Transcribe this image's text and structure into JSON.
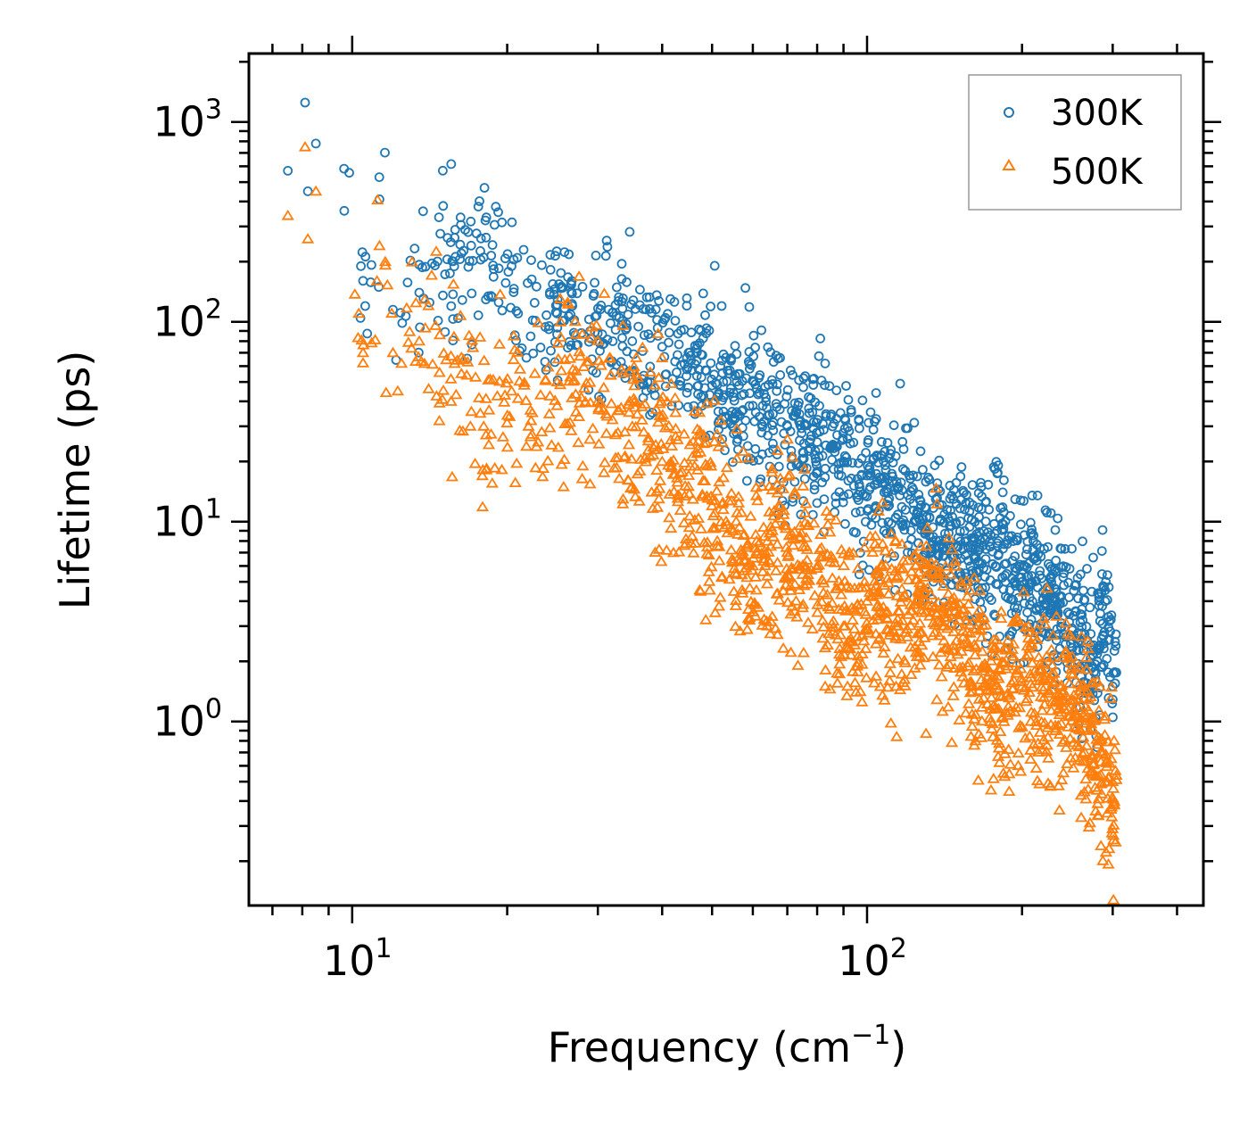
{
  "chart_data": {
    "type": "scatter",
    "xscale": "log",
    "yscale": "log",
    "xlabel": "Frequency (cm",
    "xlabel_exponent": "−1",
    "xlabel_suffix": ")",
    "ylabel": "Lifetime (ps)",
    "xlim": [
      6.3,
      450
    ],
    "ylim": [
      0.12,
      2200
    ],
    "x_ticks": [
      {
        "value": 10,
        "base": "10",
        "exp": "1"
      },
      {
        "value": 100,
        "base": "10",
        "exp": "2"
      }
    ],
    "y_ticks": [
      {
        "value": 1,
        "base": "10",
        "exp": "0"
      },
      {
        "value": 10,
        "base": "10",
        "exp": "1"
      },
      {
        "value": 100,
        "base": "10",
        "exp": "2"
      },
      {
        "value": 1000,
        "base": "10",
        "exp": "3"
      }
    ],
    "legend_position": "top-right",
    "series": [
      {
        "name": "300K",
        "color": "#1f77b4",
        "marker": "circle",
        "anchors": [
          [
            7.5,
            570
          ],
          [
            8.1,
            1250
          ],
          [
            8.2,
            450
          ],
          [
            8.5,
            780
          ],
          [
            10.4,
            190
          ],
          [
            10.6,
            120
          ],
          [
            11.3,
            410
          ],
          [
            12,
            115
          ],
          [
            13.5,
            140
          ],
          [
            16.3,
            220
          ],
          [
            18,
            210
          ],
          [
            20.4,
            190
          ],
          [
            21,
            110
          ],
          [
            22.8,
            150
          ],
          [
            25,
            110
          ],
          [
            25.5,
            150
          ],
          [
            29,
            90
          ],
          [
            31.5,
            115
          ],
          [
            35,
            80
          ],
          [
            40,
            75
          ],
          [
            45,
            70
          ],
          [
            50,
            48
          ],
          [
            55,
            42
          ],
          [
            60,
            38
          ],
          [
            70,
            30
          ],
          [
            80,
            25
          ],
          [
            90,
            20
          ],
          [
            100,
            17
          ],
          [
            115,
            15
          ],
          [
            130,
            9
          ],
          [
            150,
            7.5
          ],
          [
            170,
            6.5
          ],
          [
            180,
            8
          ],
          [
            200,
            5
          ],
          [
            230,
            4
          ],
          [
            260,
            2.5
          ],
          [
            280,
            2
          ],
          [
            290,
            4
          ],
          [
            300,
            1.5
          ]
        ],
        "spread": 0.38
      },
      {
        "name": "500K",
        "color": "#ff7f0e",
        "marker": "triangle",
        "anchors": [
          [
            7.5,
            340
          ],
          [
            8.1,
            750
          ],
          [
            8.2,
            260
          ],
          [
            8.5,
            450
          ],
          [
            10.3,
            110
          ],
          [
            10.5,
            70
          ],
          [
            11.3,
            240
          ],
          [
            12,
            70
          ],
          [
            13.5,
            80
          ],
          [
            16.3,
            55
          ],
          [
            18,
            30
          ],
          [
            20.4,
            45
          ],
          [
            22,
            30
          ],
          [
            25,
            50
          ],
          [
            30,
            40
          ],
          [
            35,
            30
          ],
          [
            40,
            20
          ],
          [
            45,
            15
          ],
          [
            50,
            12
          ],
          [
            55,
            9
          ],
          [
            60,
            6
          ],
          [
            70,
            7
          ],
          [
            80,
            6
          ],
          [
            90,
            3
          ],
          [
            100,
            4
          ],
          [
            115,
            3
          ],
          [
            125,
            4
          ],
          [
            150,
            3
          ],
          [
            170,
            1.5
          ],
          [
            200,
            1.5
          ],
          [
            240,
            1.2
          ],
          [
            270,
            0.9
          ],
          [
            290,
            0.5
          ],
          [
            300,
            0.5
          ]
        ],
        "spread": 0.45
      }
    ]
  }
}
